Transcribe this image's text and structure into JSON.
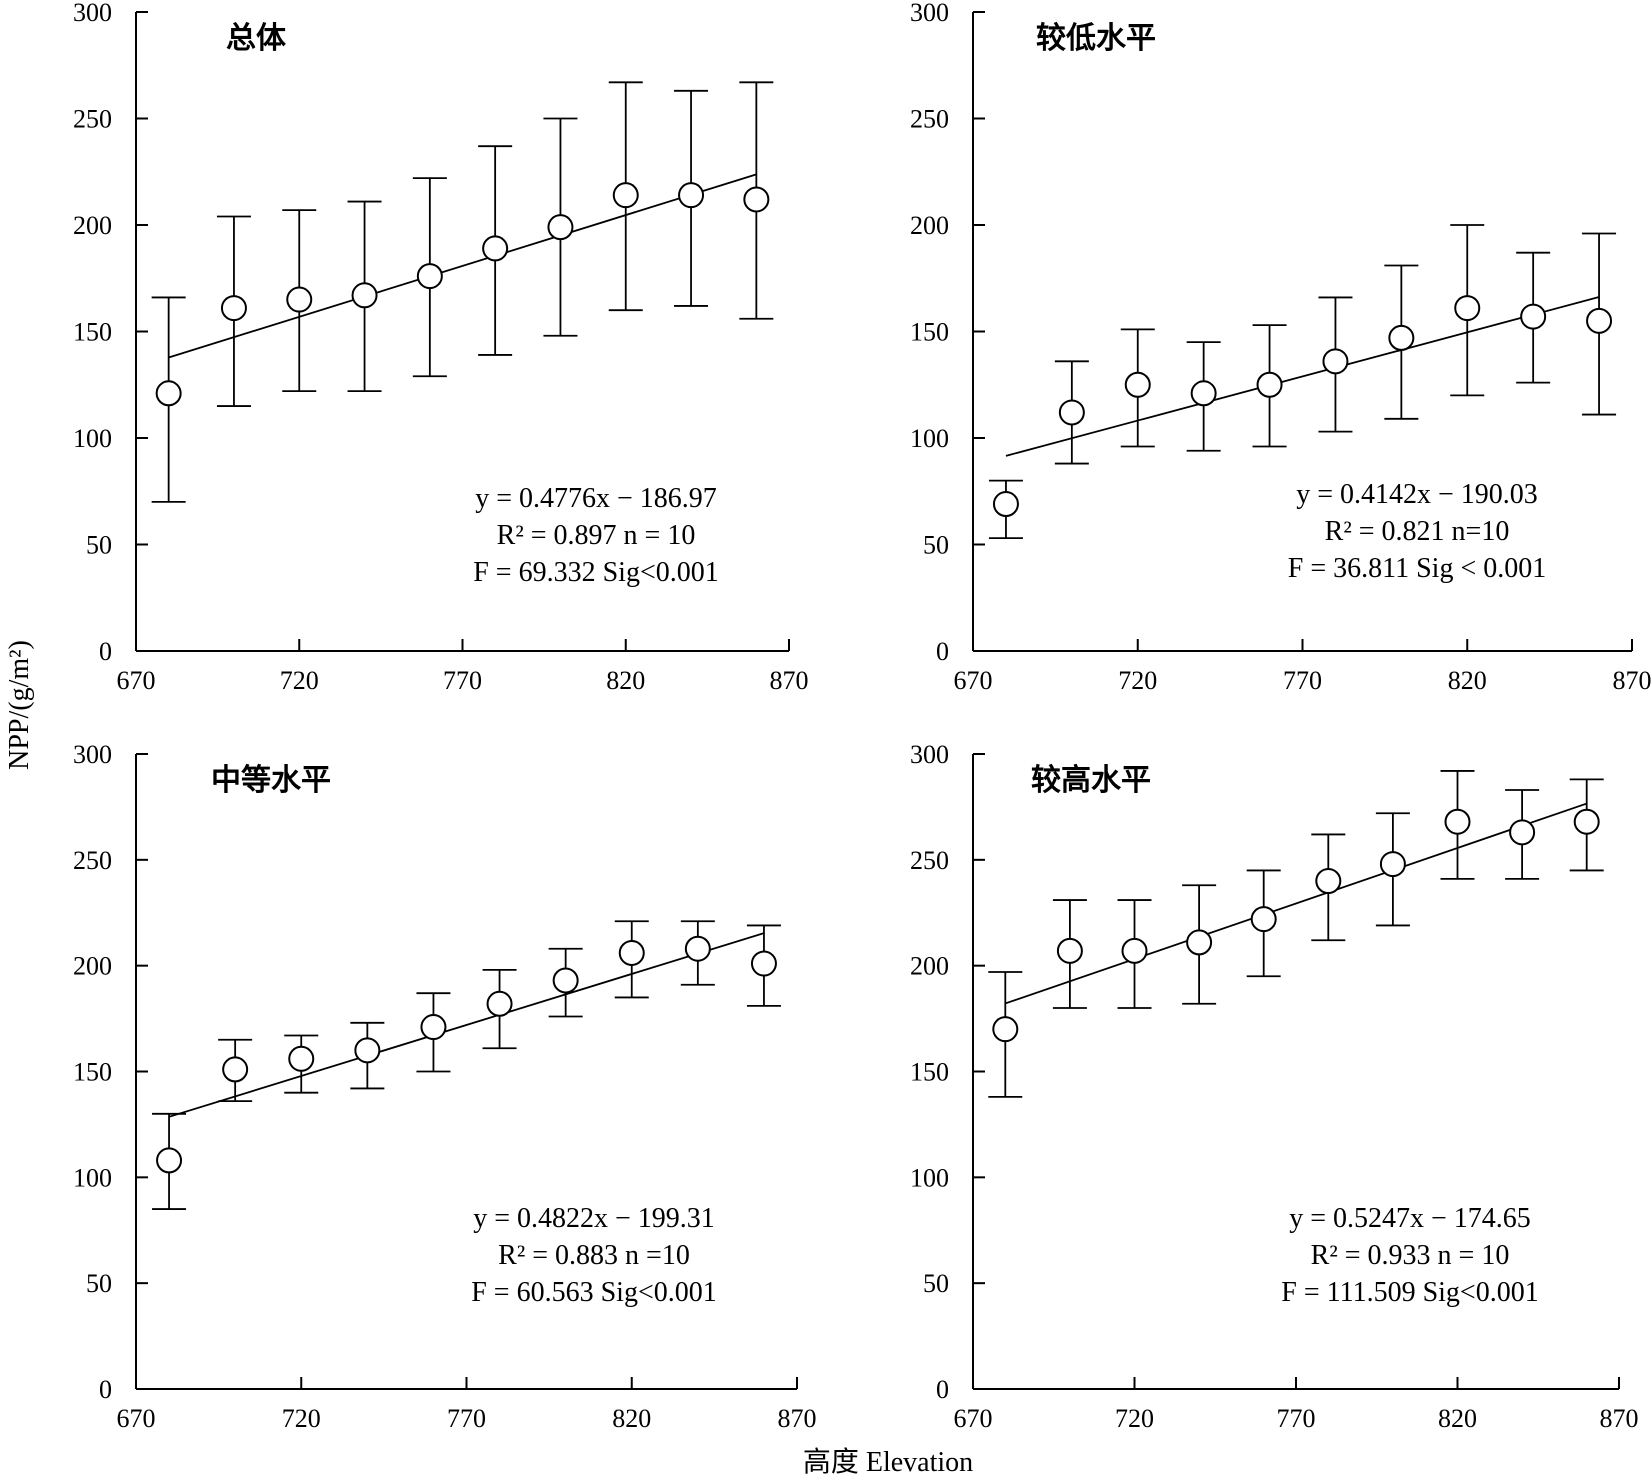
{
  "figure": {
    "y_axis_label": "NPP/(g/m²)",
    "x_axis_label": "高度 Elevation"
  },
  "chart_data": [
    {
      "type": "scatter",
      "title": "总体",
      "x": [
        680,
        700,
        720,
        740,
        760,
        780,
        800,
        820,
        840,
        860
      ],
      "y": [
        121,
        161,
        165,
        167,
        176,
        189,
        199,
        214,
        214,
        212
      ],
      "err_low": [
        70,
        115,
        122,
        122,
        129,
        139,
        148,
        160,
        162,
        156
      ],
      "err_high": [
        166,
        204,
        207,
        211,
        222,
        237,
        250,
        267,
        263,
        267
      ],
      "fit": {
        "slope": 0.4776,
        "intercept": -186.97
      },
      "equation_lines": [
        "y = 0.4776x − 186.97",
        "R² = 0.897    n = 10",
        "F = 69.332    Sig<0.001"
      ],
      "xlim": [
        670,
        870
      ],
      "ylim": [
        0,
        300
      ],
      "xticks": [
        670,
        720,
        770,
        820,
        870
      ],
      "yticks": [
        0,
        50,
        100,
        150,
        200,
        250,
        300
      ]
    },
    {
      "type": "scatter",
      "title": "较低水平",
      "x": [
        680,
        700,
        720,
        740,
        760,
        780,
        800,
        820,
        840,
        860
      ],
      "y": [
        69,
        112,
        125,
        121,
        125,
        136,
        147,
        161,
        157,
        155
      ],
      "err_low": [
        53,
        88,
        96,
        94,
        96,
        103,
        109,
        120,
        126,
        111
      ],
      "err_high": [
        80,
        136,
        151,
        145,
        153,
        166,
        181,
        200,
        187,
        196
      ],
      "fit": {
        "slope": 0.4142,
        "intercept": -190.03
      },
      "equation_lines": [
        "y = 0.4142x − 190.03",
        "R² = 0.821    n=10",
        "F = 36.811    Sig < 0.001"
      ],
      "xlim": [
        670,
        870
      ],
      "ylim": [
        0,
        300
      ],
      "xticks": [
        670,
        720,
        770,
        820,
        870
      ],
      "yticks": [
        0,
        50,
        100,
        150,
        200,
        250,
        300
      ]
    },
    {
      "type": "scatter",
      "title": "中等水平",
      "x": [
        680,
        700,
        720,
        740,
        760,
        780,
        800,
        820,
        840,
        860
      ],
      "y": [
        108,
        151,
        156,
        160,
        171,
        182,
        193,
        206,
        208,
        201
      ],
      "err_low": [
        85,
        136,
        140,
        142,
        150,
        161,
        176,
        185,
        191,
        181
      ],
      "err_high": [
        130,
        165,
        167,
        173,
        187,
        198,
        208,
        221,
        221,
        219
      ],
      "fit": {
        "slope": 0.4822,
        "intercept": -199.31
      },
      "equation_lines": [
        "y = 0.4822x − 199.31",
        "R² = 0.883    n =10",
        "F = 60.563    Sig<0.001"
      ],
      "xlim": [
        670,
        870
      ],
      "ylim": [
        0,
        300
      ],
      "xticks": [
        670,
        720,
        770,
        820,
        870
      ],
      "yticks": [
        0,
        50,
        100,
        150,
        200,
        250,
        300
      ]
    },
    {
      "type": "scatter",
      "title": "较高水平",
      "x": [
        680,
        700,
        720,
        740,
        760,
        780,
        800,
        820,
        840,
        860
      ],
      "y": [
        170,
        207,
        207,
        211,
        222,
        240,
        248,
        268,
        263,
        268
      ],
      "err_low": [
        138,
        180,
        180,
        182,
        195,
        212,
        219,
        241,
        241,
        245
      ],
      "err_high": [
        197,
        231,
        231,
        238,
        245,
        262,
        272,
        292,
        283,
        288
      ],
      "fit": {
        "slope": 0.5247,
        "intercept": -174.65
      },
      "equation_lines": [
        "y = 0.5247x − 174.65",
        "R² = 0.933    n = 10",
        "F = 111.509    Sig<0.001"
      ],
      "xlim": [
        670,
        870
      ],
      "ylim": [
        0,
        300
      ],
      "xticks": [
        670,
        720,
        770,
        820,
        870
      ],
      "yticks": [
        0,
        50,
        100,
        150,
        200,
        250,
        300
      ]
    }
  ]
}
